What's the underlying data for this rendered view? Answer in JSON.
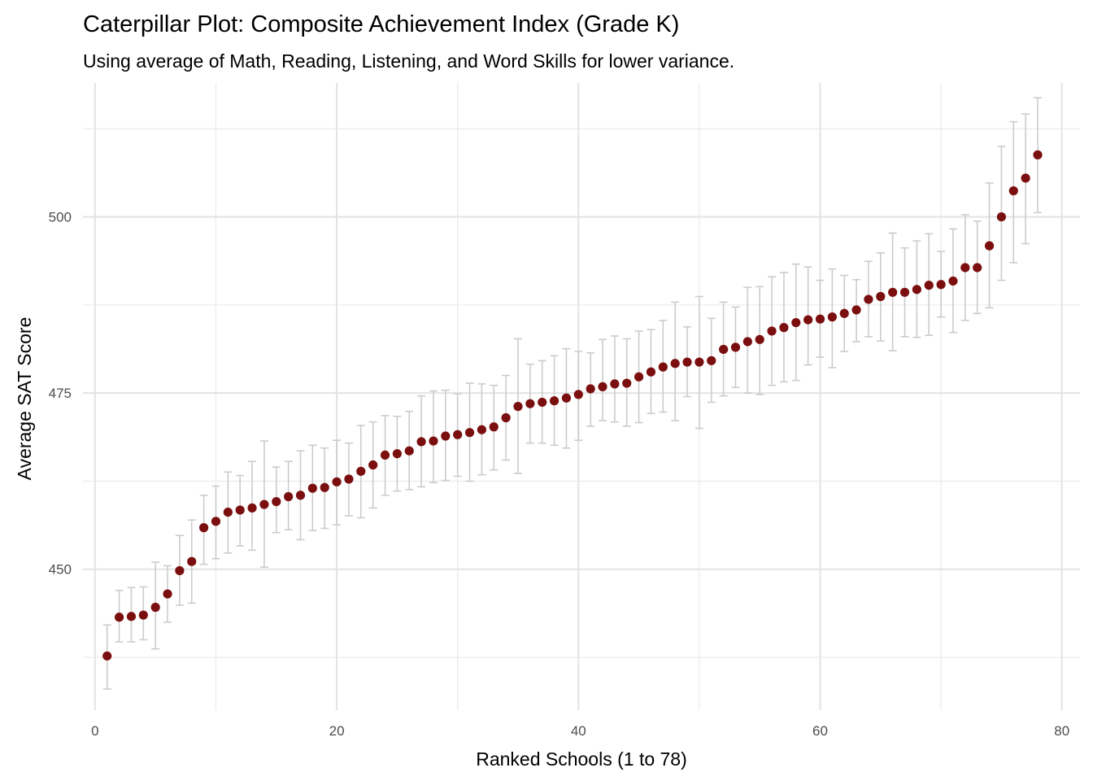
{
  "chart_data": {
    "type": "scatter",
    "title": "Caterpillar Plot: Composite Achievement Index (Grade K)",
    "subtitle": "Using average of Math, Reading, Listening, and Word Skills for lower variance.",
    "xlabel": "Ranked Schools (1 to 78)",
    "ylabel": "Average SAT Score",
    "xlim": [
      -1,
      81.5
    ],
    "ylim": [
      430,
      519
    ],
    "xticks": [
      0,
      20,
      40,
      60,
      80
    ],
    "yticks": [
      450,
      475,
      500
    ],
    "grid": true,
    "colors": {
      "point": "#7b0f0f",
      "errorbar": "#cccccc",
      "grid": "#e3e3e3"
    },
    "x": [
      1,
      2,
      3,
      4,
      5,
      6,
      7,
      8,
      9,
      10,
      11,
      12,
      13,
      14,
      15,
      16,
      17,
      18,
      19,
      20,
      21,
      22,
      23,
      24,
      25,
      26,
      27,
      28,
      29,
      30,
      31,
      32,
      33,
      34,
      35,
      36,
      37,
      38,
      39,
      40,
      41,
      42,
      43,
      44,
      45,
      46,
      47,
      48,
      49,
      50,
      51,
      52,
      53,
      54,
      55,
      56,
      57,
      58,
      59,
      60,
      61,
      62,
      63,
      64,
      65,
      66,
      67,
      68,
      69,
      70,
      71,
      72,
      73,
      74,
      75,
      76,
      77,
      78
    ],
    "y": [
      437.7,
      443.2,
      443.3,
      443.5,
      444.6,
      446.5,
      449.8,
      451.1,
      455.9,
      456.8,
      458.1,
      458.4,
      458.7,
      459.2,
      459.6,
      460.3,
      460.5,
      461.5,
      461.6,
      462.4,
      462.8,
      463.9,
      464.8,
      466.2,
      466.4,
      466.8,
      468.1,
      468.2,
      468.9,
      469.1,
      469.4,
      469.8,
      470.2,
      471.5,
      473.1,
      473.5,
      473.7,
      473.9,
      474.3,
      474.8,
      475.6,
      475.9,
      476.3,
      476.4,
      477.3,
      478.0,
      478.7,
      479.2,
      479.4,
      479.4,
      479.6,
      481.2,
      481.5,
      482.3,
      482.6,
      483.8,
      484.3,
      485.0,
      485.4,
      485.5,
      485.8,
      486.3,
      486.8,
      488.3,
      488.7,
      489.3,
      489.3,
      489.7,
      490.3,
      490.4,
      490.9,
      492.8,
      492.8,
      495.9,
      500.0,
      503.7,
      505.5,
      508.8
    ],
    "y_lower": [
      433.0,
      439.7,
      439.7,
      440.0,
      438.7,
      442.5,
      444.9,
      445.2,
      450.7,
      451.5,
      452.3,
      453.3,
      452.7,
      450.3,
      455.2,
      455.6,
      454.2,
      455.5,
      455.8,
      456.3,
      457.6,
      457.3,
      458.7,
      460.5,
      461.1,
      461.3,
      461.7,
      462.3,
      462.6,
      463.2,
      462.5,
      463.4,
      464.1,
      465.5,
      463.6,
      467.9,
      467.9,
      467.6,
      467.2,
      468.3,
      470.3,
      471.1,
      470.9,
      470.3,
      470.8,
      472.1,
      472.3,
      471.1,
      474.5,
      470.0,
      473.7,
      474.6,
      475.8,
      475.0,
      474.8,
      476.1,
      476.6,
      476.8,
      479.0,
      480.1,
      478.6,
      480.9,
      482.3,
      483.0,
      482.4,
      481.0,
      483.0,
      482.9,
      483.2,
      485.8,
      483.6,
      485.3,
      486.3,
      487.1,
      491.0,
      493.5,
      496.2,
      500.6
    ],
    "y_upper": [
      442.1,
      447.0,
      447.4,
      447.5,
      451.0,
      450.5,
      454.8,
      457.0,
      460.5,
      461.8,
      463.8,
      463.3,
      465.3,
      468.2,
      464.5,
      465.3,
      466.8,
      467.6,
      467.2,
      468.3,
      467.9,
      470.4,
      470.9,
      471.8,
      471.7,
      472.4,
      474.6,
      475.3,
      475.4,
      474.9,
      476.4,
      476.3,
      476.1,
      477.5,
      482.7,
      479.1,
      479.6,
      480.3,
      481.3,
      480.9,
      480.7,
      482.6,
      483.1,
      482.7,
      483.8,
      484.0,
      485.3,
      487.9,
      484.4,
      488.7,
      485.6,
      487.9,
      487.2,
      490.0,
      490.1,
      491.5,
      492.1,
      493.3,
      492.9,
      491.0,
      492.6,
      491.7,
      491.1,
      493.7,
      494.9,
      497.7,
      495.6,
      496.6,
      497.6,
      495.1,
      498.3,
      500.3,
      499.4,
      504.8,
      510.0,
      513.5,
      514.6,
      516.9
    ]
  }
}
